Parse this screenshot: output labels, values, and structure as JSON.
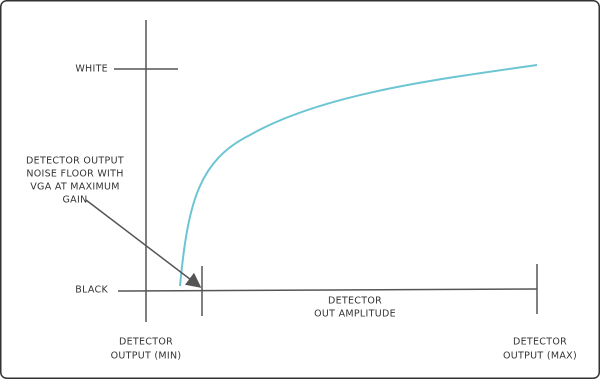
{
  "labels": {
    "white": "WHITE",
    "black": "BLACK",
    "noise_floor": [
      "DETECTOR OUTPUT",
      "NOISE FLOOR WITH",
      "VGA AT MAXIMUM",
      "GAIN"
    ],
    "amplitude": [
      "DETECTOR",
      "OUT AMPLITUDE"
    ],
    "output_min": [
      "DETECTOR",
      "OUTPUT (MIN)"
    ],
    "output_max": [
      "DETECTOR",
      "OUTPUT (MAX)"
    ]
  }
}
